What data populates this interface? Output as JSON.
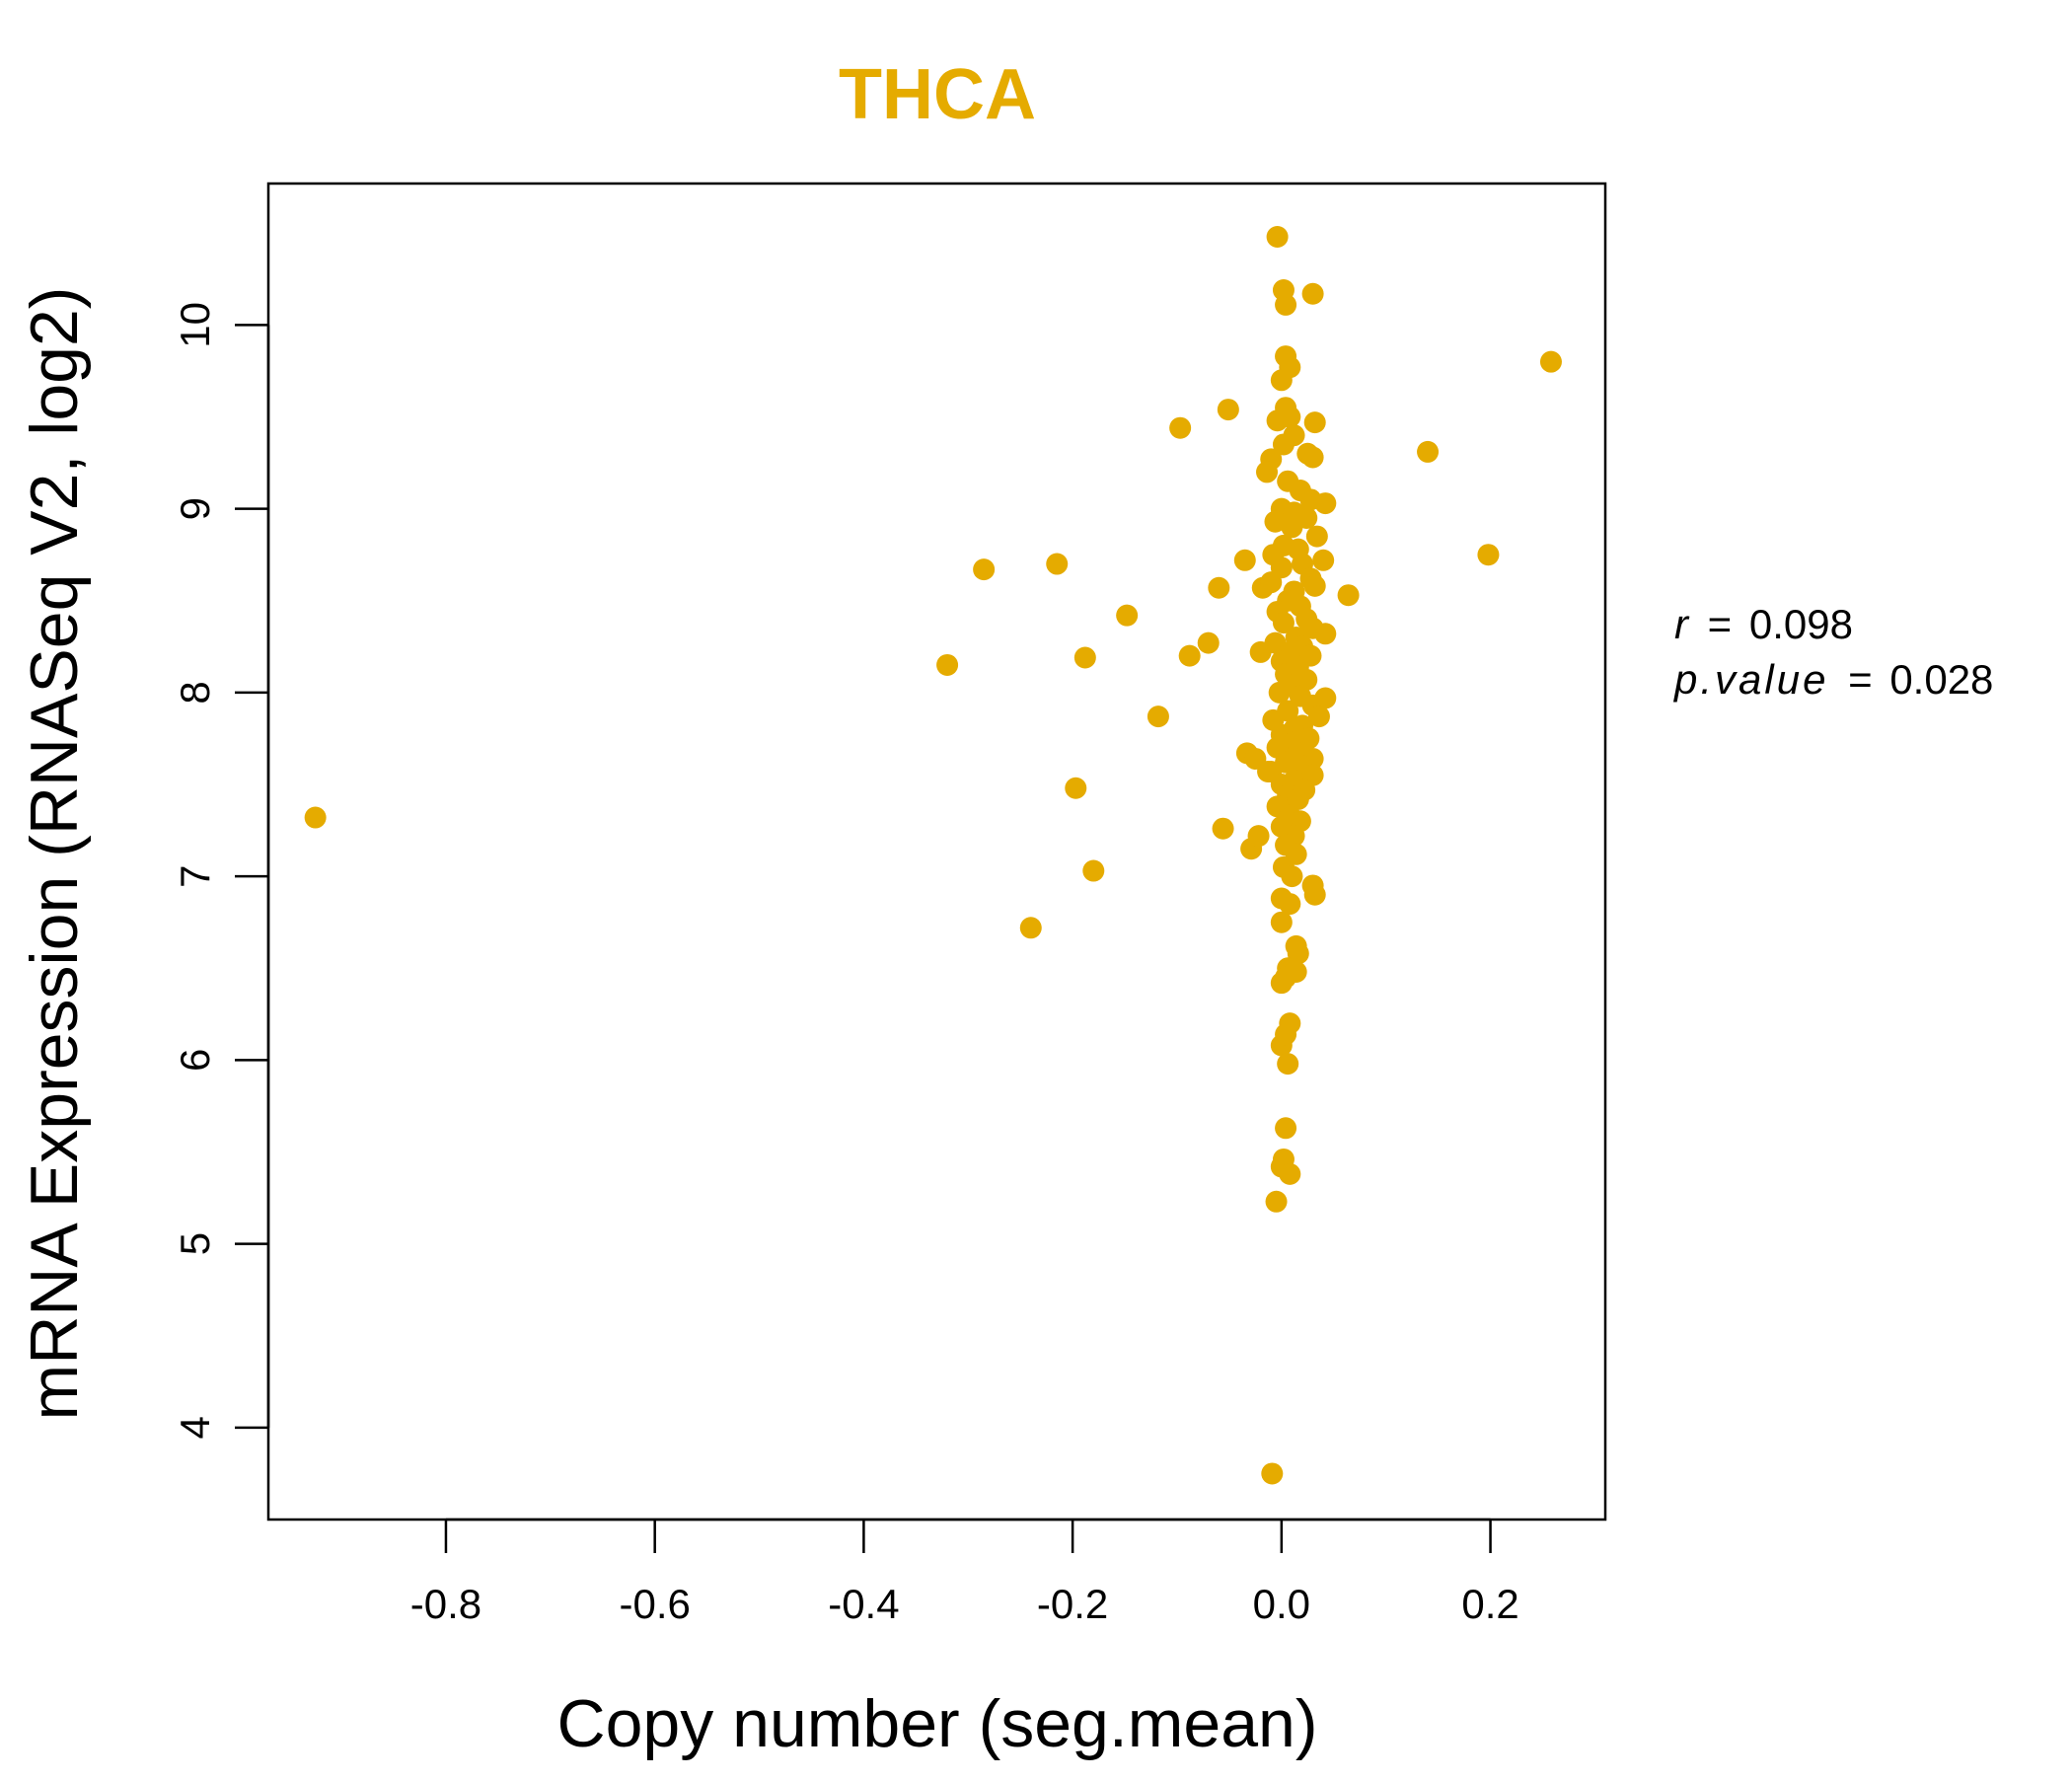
{
  "chart_data": {
    "type": "scatter",
    "title": "THCA",
    "xlabel": "Copy number (seg.mean)",
    "ylabel": "mRNA Expression (RNASeq V2, log2)",
    "xlim": [
      -0.97,
      0.31
    ],
    "ylim": [
      3.5,
      10.77
    ],
    "xticks": [
      -0.8,
      -0.6,
      -0.4,
      -0.2,
      0.0,
      0.2
    ],
    "xtick_labels": [
      "-0.8",
      "-0.6",
      "-0.4",
      "-0.2",
      "0.0",
      "0.2"
    ],
    "yticks": [
      4,
      5,
      6,
      7,
      8,
      9,
      10
    ],
    "ytick_labels": [
      "4",
      "5",
      "6",
      "7",
      "8",
      "9",
      "10"
    ],
    "point_color": "#E5AB00",
    "title_color": "#E5AB00",
    "annotation": {
      "r_label": "r",
      "r_value": "0.098",
      "p_label": "p.value",
      "p_value": "0.028",
      "equals": "="
    },
    "points": [
      [
        -0.925,
        7.32
      ],
      [
        -0.32,
        8.15
      ],
      [
        -0.285,
        8.67
      ],
      [
        -0.24,
        6.72
      ],
      [
        -0.215,
        8.7
      ],
      [
        -0.197,
        7.48
      ],
      [
        -0.188,
        8.19
      ],
      [
        -0.18,
        7.03
      ],
      [
        -0.148,
        8.42
      ],
      [
        -0.118,
        7.87
      ],
      [
        -0.097,
        9.44
      ],
      [
        -0.088,
        8.2
      ],
      [
        -0.07,
        8.27
      ],
      [
        -0.06,
        8.57
      ],
      [
        -0.056,
        7.26
      ],
      [
        -0.051,
        9.54
      ],
      [
        -0.035,
        8.72
      ],
      [
        -0.033,
        7.67
      ],
      [
        -0.029,
        7.15
      ],
      [
        -0.025,
        7.64
      ],
      [
        -0.022,
        7.22
      ],
      [
        -0.02,
        8.22
      ],
      [
        -0.018,
        8.57
      ],
      [
        -0.013,
        7.57
      ],
      [
        -0.009,
        3.75
      ],
      [
        -0.004,
        10.48
      ],
      [
        -0.005,
        5.23
      ],
      [
        0.0,
        5.42
      ],
      [
        0.0,
        6.75
      ],
      [
        0.0,
        6.42
      ],
      [
        0.0,
        6.08
      ],
      [
        0.002,
        10.19
      ],
      [
        0.004,
        10.11
      ],
      [
        0.004,
        9.83
      ],
      [
        0.008,
        9.77
      ],
      [
        0.0,
        9.7
      ],
      [
        0.004,
        9.55
      ],
      [
        0.008,
        9.5
      ],
      [
        -0.004,
        9.48
      ],
      [
        0.012,
        9.4
      ],
      [
        0.002,
        9.35
      ],
      [
        0.032,
        9.47
      ],
      [
        0.03,
        10.17
      ],
      [
        0.025,
        9.3
      ],
      [
        -0.01,
        9.27
      ],
      [
        0.03,
        9.28
      ],
      [
        -0.014,
        9.2
      ],
      [
        0.006,
        9.15
      ],
      [
        0.018,
        9.1
      ],
      [
        0.028,
        9.05
      ],
      [
        0.042,
        9.03
      ],
      [
        0.0,
        9.0
      ],
      [
        0.012,
        8.98
      ],
      [
        0.024,
        8.95
      ],
      [
        -0.006,
        8.93
      ],
      [
        0.034,
        8.85
      ],
      [
        0.01,
        8.9
      ],
      [
        0.002,
        8.8
      ],
      [
        0.016,
        8.78
      ],
      [
        -0.008,
        8.75
      ],
      [
        0.02,
        8.7
      ],
      [
        0.04,
        8.72
      ],
      [
        0.0,
        8.68
      ],
      [
        0.028,
        8.62
      ],
      [
        -0.01,
        8.6
      ],
      [
        0.012,
        8.55
      ],
      [
        0.032,
        8.58
      ],
      [
        0.064,
        8.53
      ],
      [
        0.006,
        8.5
      ],
      [
        0.018,
        8.47
      ],
      [
        -0.004,
        8.44
      ],
      [
        0.024,
        8.4
      ],
      [
        0.002,
        8.38
      ],
      [
        0.03,
        8.35
      ],
      [
        0.042,
        8.32
      ],
      [
        0.014,
        8.3
      ],
      [
        -0.006,
        8.27
      ],
      [
        0.02,
        8.25
      ],
      [
        0.008,
        8.22
      ],
      [
        0.028,
        8.2
      ],
      [
        0.0,
        8.17
      ],
      [
        0.016,
        8.14
      ],
      [
        0.004,
        8.1
      ],
      [
        0.024,
        8.07
      ],
      [
        0.01,
        8.04
      ],
      [
        -0.002,
        8.0
      ],
      [
        0.018,
        7.98
      ],
      [
        0.042,
        7.97
      ],
      [
        0.03,
        7.93
      ],
      [
        0.006,
        7.9
      ],
      [
        0.036,
        7.87
      ],
      [
        -0.008,
        7.85
      ],
      [
        0.02,
        7.82
      ],
      [
        0.012,
        7.8
      ],
      [
        0.0,
        7.77
      ],
      [
        0.026,
        7.75
      ],
      [
        0.008,
        7.72
      ],
      [
        -0.004,
        7.7
      ],
      [
        0.016,
        7.67
      ],
      [
        0.03,
        7.64
      ],
      [
        0.004,
        7.62
      ],
      [
        0.02,
        7.6
      ],
      [
        -0.01,
        7.57
      ],
      [
        0.03,
        7.55
      ],
      [
        0.012,
        7.52
      ],
      [
        0.0,
        7.5
      ],
      [
        0.022,
        7.47
      ],
      [
        0.006,
        7.44
      ],
      [
        0.016,
        7.42
      ],
      [
        -0.004,
        7.38
      ],
      [
        0.008,
        7.33
      ],
      [
        0.018,
        7.3
      ],
      [
        0.0,
        7.27
      ],
      [
        0.012,
        7.22
      ],
      [
        0.004,
        7.17
      ],
      [
        0.014,
        7.12
      ],
      [
        0.002,
        7.05
      ],
      [
        0.01,
        7.0
      ],
      [
        0.03,
        6.95
      ],
      [
        0.032,
        6.9
      ],
      [
        0.0,
        6.88
      ],
      [
        0.008,
        6.85
      ],
      [
        0.014,
        6.62
      ],
      [
        0.016,
        6.58
      ],
      [
        0.006,
        6.5
      ],
      [
        0.014,
        6.48
      ],
      [
        0.004,
        6.45
      ],
      [
        0.008,
        6.2
      ],
      [
        0.004,
        6.14
      ],
      [
        0.006,
        5.98
      ],
      [
        0.004,
        5.63
      ],
      [
        0.002,
        5.46
      ],
      [
        0.008,
        5.38
      ],
      [
        0.14,
        9.31
      ],
      [
        0.198,
        8.75
      ],
      [
        0.258,
        9.8
      ]
    ]
  }
}
